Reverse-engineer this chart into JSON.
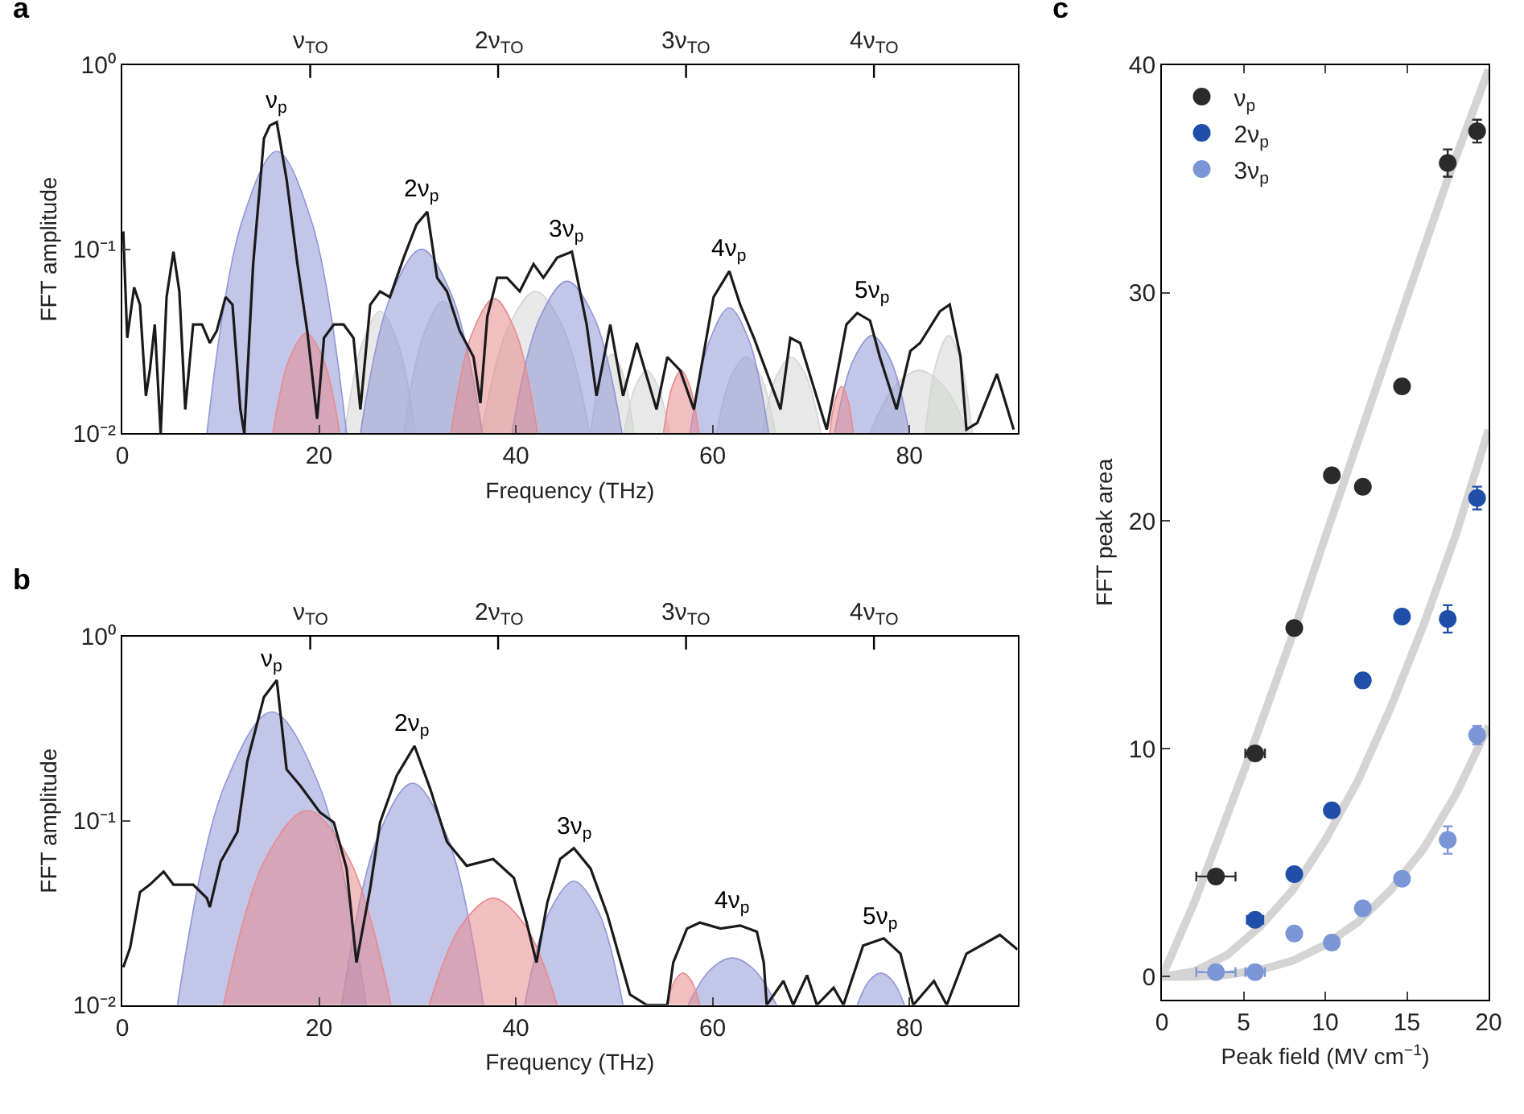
{
  "chart_data": [
    {
      "type": "area",
      "title": "a",
      "xlabel": "Frequency (THz)",
      "ylabel": "FFT amplitude",
      "log": "y",
      "xlim": [
        0,
        91
      ],
      "xticks": [
        0,
        20,
        40,
        60,
        80
      ],
      "ref_lines": [
        {
          "axis": "x",
          "value": 19.1,
          "label": "ν$_{TO}$"
        },
        {
          "axis": "x",
          "value": 38.2,
          "label": "2ν$_{TO}$"
        },
        {
          "axis": "x",
          "value": 57.3,
          "label": "3ν$_{TO}$"
        },
        {
          "axis": "x",
          "value": 76.4,
          "label": "4ν$_{TO}$"
        }
      ],
      "ylim": [
        0.01,
        1
      ],
      "yticks": [
        {
          "value": 0.01,
          "label": "10⁻²"
        },
        {
          "value": 0.1,
          "label": "10⁻¹"
        },
        {
          "value": 1,
          "label": "10⁰"
        }
      ],
      "legend": false,
      "annotations": [
        "ν$_{p}$",
        "2ν$_{p}$",
        "3ν$_{p}$",
        "4ν$_{p}$",
        "5ν$_{p}$"
      ],
      "series": [
        {
          "type": "area",
          "color": "#d3d5d3",
          "x": [
            22.6,
            24.4,
            26.2,
            28.0,
            29.8
          ],
          "values": [
            0.01,
            0.031,
            0.046,
            0.031,
            0.01
          ]
        },
        {
          "type": "area",
          "color": "#d3d5d3",
          "x": [
            28.6,
            30.6,
            32.6,
            34.6,
            36.6
          ],
          "values": [
            0.01,
            0.034,
            0.052,
            0.034,
            0.01
          ]
        },
        {
          "type": "area",
          "color": "#d3d5d3",
          "x": [
            36.5,
            39.25,
            42.0,
            44.75,
            47.5
          ],
          "values": [
            0.01,
            0.038,
            0.059,
            0.038,
            0.01
          ]
        },
        {
          "type": "area",
          "color": "#d3d5d3",
          "x": [
            47.6,
            48.7,
            49.8,
            50.9,
            52.0
          ],
          "values": [
            0.01,
            0.021,
            0.027,
            0.021,
            0.01
          ]
        },
        {
          "type": "area",
          "color": "#d3d5d3",
          "x": [
            51.0,
            52.15,
            53.3,
            54.45,
            55.6
          ],
          "values": [
            0.01,
            0.018,
            0.022,
            0.018,
            0.01
          ]
        },
        {
          "type": "area",
          "color": "#d3d5d3",
          "x": [
            60.4,
            61.9,
            63.4,
            64.9,
            66.4
          ],
          "values": [
            0.01,
            0.0205,
            0.026,
            0.0205,
            0.01
          ]
        },
        {
          "type": "area",
          "color": "#d3d5d3",
          "x": [
            65.0,
            66.5,
            68.0,
            69.5,
            71.0
          ],
          "values": [
            0.01,
            0.0205,
            0.026,
            0.0205,
            0.01
          ]
        },
        {
          "type": "area",
          "color": "#d3d5d3",
          "x": [
            76.0,
            78.5,
            81.0,
            83.5,
            86.0
          ],
          "values": [
            0.01,
            0.018,
            0.022,
            0.018,
            0.01
          ]
        },
        {
          "type": "area",
          "color": "#d3d5d3",
          "x": [
            81.6,
            82.8,
            84.0,
            85.2,
            86.4
          ],
          "values": [
            0.01,
            0.025,
            0.034,
            0.025,
            0.01
          ]
        },
        {
          "type": "area",
          "color": "#8f97d6",
          "x": [
            8.6,
            12.15,
            15.7,
            19.25,
            22.8
          ],
          "values": [
            0.01,
            0.141,
            0.34,
            0.141,
            0.01
          ]
        },
        {
          "type": "area",
          "color": "#8f97d6",
          "x": [
            24.2,
            27.3,
            30.4,
            33.5,
            36.6
          ],
          "values": [
            0.01,
            0.056,
            0.1,
            0.056,
            0.01
          ]
        },
        {
          "type": "area",
          "color": "#8f97d6",
          "x": [
            39.6,
            42.4,
            45.2,
            48.0,
            50.8
          ],
          "values": [
            0.01,
            0.042,
            0.067,
            0.042,
            0.01
          ]
        },
        {
          "type": "area",
          "color": "#8f97d6",
          "x": [
            57.7,
            59.7,
            61.7,
            63.7,
            65.7
          ],
          "values": [
            0.01,
            0.032,
            0.048,
            0.032,
            0.01
          ]
        },
        {
          "type": "area",
          "color": "#8f97d6",
          "x": [
            72.4,
            74.3,
            76.2,
            78.1,
            80.0
          ],
          "values": [
            0.01,
            0.025,
            0.034,
            0.025,
            0.01
          ]
        },
        {
          "type": "area",
          "color": "#e88a8e",
          "x": [
            15.3,
            17.0,
            18.7,
            20.4,
            22.1
          ],
          "values": [
            0.01,
            0.0256,
            0.035,
            0.0256,
            0.01
          ]
        },
        {
          "type": "area",
          "color": "#e88a8e",
          "x": [
            33.4,
            35.6,
            37.8,
            40.0,
            42.2
          ],
          "values": [
            0.01,
            0.0354,
            0.054,
            0.0354,
            0.01
          ]
        },
        {
          "type": "area",
          "color": "#e88a8e",
          "x": [
            55.0,
            55.9,
            56.8,
            57.7,
            58.6
          ],
          "values": [
            0.01,
            0.018,
            0.022,
            0.018,
            0.01
          ]
        },
        {
          "type": "area",
          "color": "#e88a8e",
          "x": [
            71.9,
            72.5,
            73.1,
            73.7,
            74.3
          ],
          "values": [
            0.01,
            0.0155,
            0.018,
            0.0155,
            0.01
          ]
        },
        {
          "type": "line",
          "color": "#1a1a1a",
          "x": [
            0.1,
            0.5,
            1.2,
            1.8,
            2.4,
            2.8,
            3.3,
            3.9,
            4.5,
            5.2,
            5.8,
            6.4,
            7.2,
            8.1,
            8.9,
            9.6,
            10.5,
            11.2,
            12.0,
            12.4,
            13.3,
            14.4,
            15.0,
            15.7,
            16.7,
            17.8,
            18.8,
            19.8,
            20.5,
            21.5,
            22.5,
            23.5,
            24.2,
            25.2,
            26.2,
            27.2,
            28.6,
            29.9,
            31.0,
            32.0,
            33.0,
            34.3,
            35.7,
            36.4,
            37.1,
            38.1,
            39.1,
            40.4,
            41.8,
            42.8,
            44.2,
            45.7,
            47.2,
            48.2,
            49.6,
            50.9,
            52.3,
            54.3,
            55.4,
            56.7,
            58.1,
            60.1,
            61.7,
            62.8,
            64.2,
            66.9,
            67.9,
            68.9,
            71.6,
            73.6,
            74.7,
            76.0,
            77.0,
            78.7,
            80.1,
            81.1,
            83.1,
            84.1,
            85.2,
            85.8,
            86.9,
            88.9,
            90.6
          ],
          "values": [
            0.125,
            0.033,
            0.062,
            0.05,
            0.016,
            0.022,
            0.039,
            0.01,
            0.055,
            0.097,
            0.059,
            0.0135,
            0.039,
            0.039,
            0.031,
            0.036,
            0.055,
            0.05,
            0.0135,
            0.01,
            0.083,
            0.4,
            0.47,
            0.49,
            0.24,
            0.083,
            0.036,
            0.012,
            0.033,
            0.039,
            0.039,
            0.033,
            0.0135,
            0.05,
            0.059,
            0.055,
            0.09,
            0.136,
            0.16,
            0.07,
            0.059,
            0.036,
            0.026,
            0.0146,
            0.043,
            0.07,
            0.07,
            0.059,
            0.083,
            0.07,
            0.09,
            0.097,
            0.039,
            0.016,
            0.039,
            0.016,
            0.031,
            0.0135,
            0.026,
            0.022,
            0.0135,
            0.055,
            0.076,
            0.05,
            0.033,
            0.0135,
            0.033,
            0.031,
            0.0105,
            0.039,
            0.045,
            0.041,
            0.026,
            0.0135,
            0.028,
            0.031,
            0.046,
            0.05,
            0.026,
            0.0105,
            0.0114,
            0.021,
            0.0105
          ]
        }
      ]
    },
    {
      "type": "area",
      "title": "b",
      "xlabel": "Frequency (THz)",
      "ylabel": "FFT amplitude",
      "log": "y",
      "xlim": [
        0,
        91
      ],
      "xticks": [
        0,
        20,
        40,
        60,
        80
      ],
      "ref_lines": [
        {
          "axis": "x",
          "value": 19.1,
          "label": "ν$_{TO}$"
        },
        {
          "axis": "x",
          "value": 38.2,
          "label": "2ν$_{TO}$"
        },
        {
          "axis": "x",
          "value": 57.3,
          "label": "3ν$_{TO}$"
        },
        {
          "axis": "x",
          "value": 76.4,
          "label": "4ν$_{TO}$"
        }
      ],
      "ylim": [
        0.01,
        1
      ],
      "yticks": [
        {
          "value": 0.01,
          "label": "10⁻²"
        },
        {
          "value": 0.1,
          "label": "10⁻¹"
        },
        {
          "value": 1,
          "label": "10⁰"
        }
      ],
      "legend": false,
      "annotations": [
        "ν$_{p}$",
        "2ν$_{p}$",
        "3ν$_{p}$",
        "4ν$_{p}$",
        "5ν$_{p}$"
      ],
      "series": [
        {
          "type": "area",
          "color": "#8f97d6",
          "x": [
            5.6,
            10.4,
            15.2,
            20.0,
            24.8
          ],
          "values": [
            0.01,
            0.156,
            0.39,
            0.156,
            0.01
          ]
        },
        {
          "type": "area",
          "color": "#8f97d6",
          "x": [
            22.3,
            25.9,
            29.5,
            33.1,
            36.7
          ],
          "values": [
            0.01,
            0.08,
            0.16,
            0.08,
            0.01
          ]
        },
        {
          "type": "area",
          "color": "#8f97d6",
          "x": [
            40.9,
            43.4,
            45.9,
            48.4,
            50.9
          ],
          "values": [
            0.01,
            0.032,
            0.047,
            0.032,
            0.01
          ]
        },
        {
          "type": "area",
          "color": "#8f97d6",
          "x": [
            57.5,
            59.75,
            62.0,
            64.25,
            66.5
          ],
          "values": [
            0.01,
            0.0155,
            0.018,
            0.0155,
            0.01
          ]
        },
        {
          "type": "area",
          "color": "#8f97d6",
          "x": [
            74.7,
            75.9,
            77.1,
            78.3,
            79.5
          ],
          "values": [
            0.01,
            0.0135,
            0.0149,
            0.0135,
            0.01
          ]
        },
        {
          "type": "area",
          "color": "#e88a8e",
          "x": [
            10.3,
            14.55,
            18.8,
            23.05,
            27.3
          ],
          "values": [
            0.01,
            0.062,
            0.114,
            0.062,
            0.01
          ]
        },
        {
          "type": "area",
          "color": "#e88a8e",
          "x": [
            31.2,
            34.45,
            37.7,
            40.95,
            44.2
          ],
          "values": [
            0.01,
            0.027,
            0.038,
            0.027,
            0.01
          ]
        },
        {
          "type": "area",
          "color": "#e88a8e",
          "x": [
            55.3,
            56.15,
            57.0,
            57.85,
            58.7
          ],
          "values": [
            0.01,
            0.0135,
            0.0149,
            0.0135,
            0.01
          ]
        },
        {
          "type": "line",
          "color": "#1a1a1a",
          "x": [
            0.1,
            0.8,
            1.8,
            2.8,
            4.2,
            5.2,
            7.2,
            8.6,
            8.9,
            10.0,
            11.7,
            12.7,
            14.4,
            15.7,
            16.7,
            18.1,
            20.1,
            21.5,
            22.8,
            23.8,
            25.2,
            26.2,
            27.9,
            29.7,
            31.3,
            33.0,
            35.0,
            37.7,
            39.8,
            41.1,
            42.1,
            43.2,
            44.5,
            45.9,
            47.6,
            49.3,
            51.6,
            53.3,
            55.4,
            56.0,
            57.4,
            58.7,
            60.8,
            62.8,
            64.5,
            65.2,
            65.5,
            67.2,
            68.2,
            69.6,
            70.6,
            72.3,
            73.3,
            75.3,
            77.4,
            79.1,
            80.4,
            82.5,
            83.8,
            85.8,
            89.2,
            91.0
          ],
          "values": [
            0.016,
            0.0205,
            0.041,
            0.045,
            0.053,
            0.045,
            0.045,
            0.038,
            0.034,
            0.06,
            0.087,
            0.21,
            0.47,
            0.58,
            0.19,
            0.155,
            0.111,
            0.098,
            0.055,
            0.017,
            0.043,
            0.098,
            0.176,
            0.255,
            0.149,
            0.077,
            0.057,
            0.062,
            0.049,
            0.028,
            0.017,
            0.036,
            0.062,
            0.071,
            0.055,
            0.031,
            0.0114,
            0.01,
            0.01,
            0.017,
            0.026,
            0.028,
            0.026,
            0.027,
            0.025,
            0.017,
            0.01,
            0.0135,
            0.01,
            0.0145,
            0.01,
            0.0124,
            0.01,
            0.021,
            0.023,
            0.019,
            0.01,
            0.0135,
            0.01,
            0.019,
            0.024,
            0.02
          ]
        }
      ]
    },
    {
      "type": "scatter",
      "title": "c",
      "xlabel": "Peak field (MV cm$^{−1}$)",
      "ylabel": "FFT peak area",
      "xlim": [
        0,
        20
      ],
      "xticks": [
        0,
        5,
        10,
        15,
        20
      ],
      "ylim": [
        -1,
        40
      ],
      "yticks": [
        0,
        10,
        20,
        30,
        40
      ],
      "legend": "top left",
      "marker": "circle",
      "series": [
        {
          "type": "line",
          "marker": "none",
          "color": "#d4d4d4",
          "x": [
            0,
            2,
            5,
            8,
            10,
            12,
            15,
            17.5,
            20
          ],
          "values": [
            0,
            3.3,
            9,
            15,
            19.3,
            23.5,
            29.8,
            35,
            39.8
          ]
        },
        {
          "type": "line",
          "marker": "none",
          "color": "#d4d4d4",
          "x": [
            0,
            2,
            4,
            6,
            8,
            10,
            12,
            14,
            16,
            18,
            20
          ],
          "values": [
            0,
            0.24,
            0.96,
            2.2,
            3.8,
            6,
            8.6,
            11.8,
            15.4,
            19.4,
            24
          ]
        },
        {
          "type": "line",
          "marker": "none",
          "color": "#d4d4d4",
          "x": [
            0,
            2,
            4,
            6,
            8,
            10,
            12,
            14,
            16,
            18,
            20
          ],
          "values": [
            0,
            0.01,
            0.09,
            0.3,
            0.7,
            1.4,
            2.4,
            3.8,
            5.6,
            8.0,
            11
          ]
        },
        {
          "name": "ν$_{p}$",
          "color": "#2a2a2a",
          "x": [
            3.3,
            5.7,
            8.1,
            10.4,
            12.3,
            14.7,
            17.5,
            19.3
          ],
          "values": [
            4.4,
            9.8,
            15.3,
            22.0,
            21.5,
            25.9,
            35.7,
            37.1
          ],
          "errors": [
            null,
            null,
            null,
            null,
            null,
            null,
            0.6,
            0.5
          ],
          "xerrors": [
            1.2,
            0.6,
            0.4,
            null,
            null,
            null,
            null,
            null
          ]
        },
        {
          "name": "2ν$_{p}$",
          "color": "#1f4fa8",
          "x": [
            5.7,
            8.1,
            10.4,
            12.3,
            14.7,
            17.5,
            19.3
          ],
          "values": [
            2.5,
            4.5,
            7.3,
            13.0,
            15.8,
            15.7,
            21.0
          ],
          "errors": [
            null,
            null,
            null,
            null,
            null,
            0.6,
            0.5
          ],
          "xerrors": [
            0.5,
            0.3,
            null,
            null,
            null,
            null,
            null
          ]
        },
        {
          "name": "3ν$_{p}$",
          "color": "#7b96d6",
          "x": [
            3.3,
            5.7,
            8.1,
            10.4,
            12.3,
            14.7,
            17.5,
            19.3
          ],
          "values": [
            0.2,
            0.2,
            1.9,
            1.5,
            3.0,
            4.3,
            6.0,
            10.6
          ],
          "errors": [
            null,
            null,
            null,
            null,
            null,
            null,
            0.6,
            0.4
          ],
          "xerrors": [
            1.2,
            0.6,
            null,
            null,
            null,
            null,
            null,
            null
          ]
        }
      ]
    }
  ]
}
